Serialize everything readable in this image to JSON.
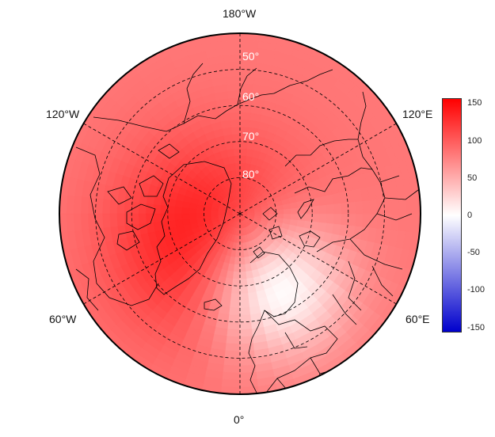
{
  "map": {
    "projection": "north-polar-stereographic",
    "longitude_labels": [
      {
        "key": "top",
        "text": "180°W"
      },
      {
        "key": "upper-left",
        "text": "120°W"
      },
      {
        "key": "upper-right",
        "text": "120°E"
      },
      {
        "key": "lower-left",
        "text": "60°W"
      },
      {
        "key": "lower-right",
        "text": "60°E"
      },
      {
        "key": "bottom",
        "text": "0°"
      }
    ],
    "latitude_labels": [
      "50°",
      "60°",
      "70°",
      "80°"
    ],
    "latitude_circles": [
      50,
      60,
      70,
      80
    ],
    "meridians_every_deg": 60,
    "field_features": [
      {
        "name": "positive-maximum",
        "lon_deg": -45,
        "lat_deg": 78,
        "value": 155
      },
      {
        "name": "negative-minimum",
        "lon_deg": 25,
        "lat_deg": 68,
        "value": -30
      }
    ],
    "colors": {
      "positive": "#ff0000",
      "neutral": "#ffffff",
      "negative": "#0000cc",
      "coastline": "#000000"
    }
  },
  "colorbar": {
    "ticks": [
      "150",
      "100",
      "50",
      "0",
      "-50",
      "-100",
      "-150"
    ],
    "range": [
      -160,
      160
    ],
    "colors": [
      "#0000cc",
      "#ffffff",
      "#ff0000"
    ]
  }
}
